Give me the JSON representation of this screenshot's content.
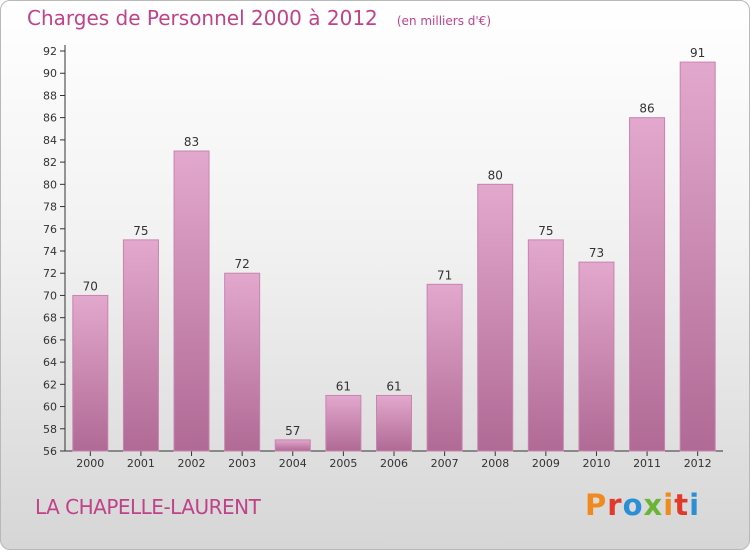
{
  "chart_data": {
    "type": "bar",
    "title": "Charges de Personnel 2000 à 2012",
    "subtitle": "(en milliers d'€)",
    "categories": [
      "2000",
      "2001",
      "2002",
      "2003",
      "2004",
      "2005",
      "2006",
      "2007",
      "2008",
      "2009",
      "2010",
      "2011",
      "2012"
    ],
    "values": [
      70,
      75,
      83,
      72,
      57,
      61,
      61,
      71,
      80,
      75,
      73,
      86,
      91
    ],
    "xlabel": "",
    "ylabel": "",
    "ylim": [
      56,
      92
    ],
    "yticks": [
      56,
      58,
      60,
      62,
      64,
      66,
      68,
      70,
      72,
      74,
      76,
      78,
      80,
      82,
      84,
      86,
      88,
      90,
      92
    ],
    "grid": false,
    "legend": "none",
    "colors": {
      "bar_top": "#e3a8cd",
      "bar_bottom": "#b06a95",
      "bar_edge": "#c884ad"
    }
  },
  "footer": {
    "commune": "LA CHAPELLE-LAURENT",
    "brand": "Proxiti",
    "brand_colors": [
      "#f08a1e",
      "#e23a2a",
      "#2a8fd4",
      "#6ab536",
      "#f08a1e",
      "#e23a2a",
      "#2a8fd4"
    ]
  }
}
